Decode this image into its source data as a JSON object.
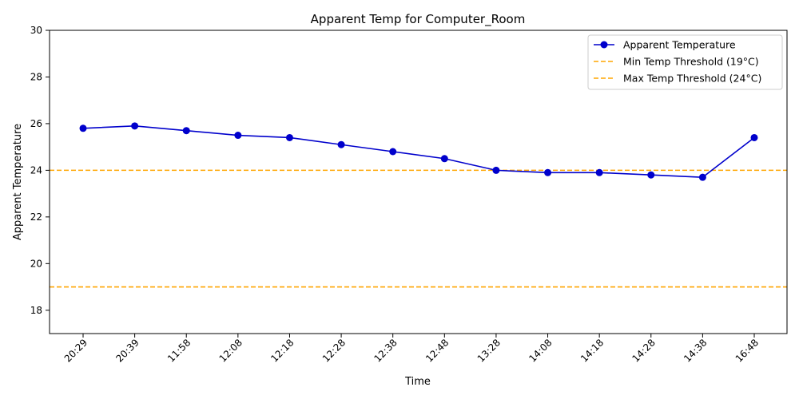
{
  "chart_data": {
    "type": "line",
    "title": "Apparent Temp for Computer_Room",
    "xlabel": "Time",
    "ylabel": "Apparent Temperature",
    "categories": [
      "20:29",
      "20:39",
      "11:58",
      "12:08",
      "12:18",
      "12:28",
      "12:38",
      "12:48",
      "13:28",
      "14:08",
      "14:18",
      "14:28",
      "14:38",
      "16:48"
    ],
    "series": [
      {
        "name": "Apparent Temperature",
        "values": [
          25.8,
          25.9,
          25.7,
          25.5,
          25.4,
          25.1,
          24.8,
          24.5,
          24.0,
          23.9,
          23.9,
          23.8,
          23.7,
          25.4
        ],
        "color": "#0000cc"
      }
    ],
    "thresholds": [
      {
        "name": "Min Temp Threshold (19°C)",
        "value": 19,
        "color": "#ffa500"
      },
      {
        "name": "Max Temp Threshold (24°C)",
        "value": 24,
        "color": "#ffa500"
      }
    ],
    "ylim": [
      17,
      30
    ],
    "yticks": [
      18,
      20,
      22,
      24,
      26,
      28,
      30
    ],
    "grid": false,
    "legend_position": "top-right"
  }
}
